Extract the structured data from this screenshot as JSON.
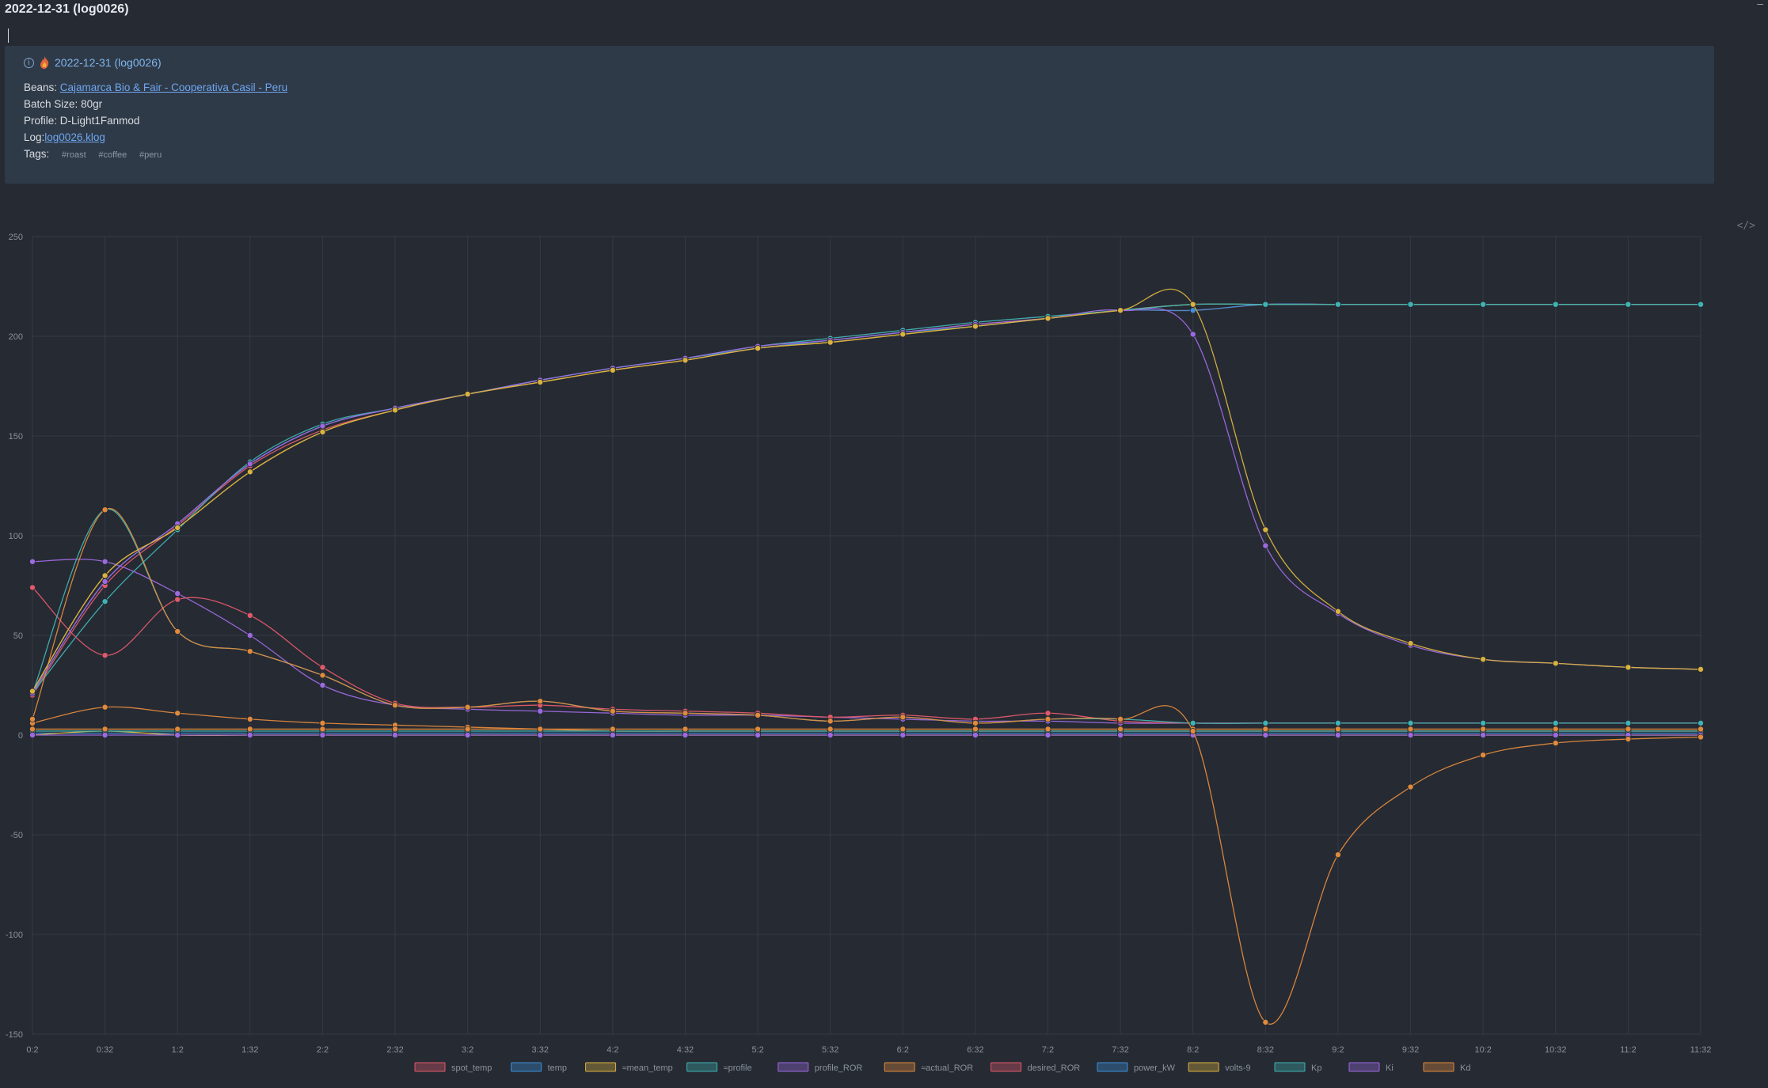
{
  "page": {
    "title": "2022-12-31 (log0026)",
    "minimize_glyph": "–"
  },
  "card": {
    "title": "2022-12-31 (log0026)",
    "beans_label": "Beans:",
    "beans_value": "Cajamarca Bio & Fair - Cooperativa Casil - Peru",
    "batch_label": "Batch Size:",
    "batch_value": "80gr",
    "profile_label": "Profile:",
    "profile_value": "D-Light1Fanmod",
    "log_label": "Log:",
    "log_value": "log0026.klog",
    "tags_label": "Tags:",
    "tags": [
      "#roast",
      "#coffee",
      "#peru"
    ]
  },
  "icons": {
    "info": "info-circle-icon",
    "fire": "fire-icon",
    "embed": "code-embed-icon"
  },
  "chart_data": {
    "type": "line",
    "x": [
      "0:2",
      "0:32",
      "1:2",
      "1:32",
      "2:2",
      "2:32",
      "3:2",
      "3:32",
      "4:2",
      "4:32",
      "5:2",
      "5:32",
      "6:2",
      "6:32",
      "7:2",
      "7:32",
      "8:2",
      "8:32",
      "9:2",
      "9:32",
      "10:2",
      "10:32",
      "11:2",
      "11:32"
    ],
    "ylim": [
      -150,
      250
    ],
    "yticks": [
      250,
      200,
      150,
      100,
      50,
      0,
      -50,
      -100,
      -150
    ],
    "grid": true,
    "legend_position": "bottom",
    "series": [
      {
        "name": "spot_temp",
        "color": "#e05a6b",
        "values": [
          20,
          75,
          105,
          135,
          153,
          163,
          171,
          177,
          183,
          188,
          194,
          198,
          202,
          206,
          209,
          213,
          213,
          216,
          216,
          216,
          216,
          216,
          216,
          216
        ]
      },
      {
        "name": "temp",
        "color": "#3d8fd6",
        "values": [
          21,
          77,
          106,
          136,
          155,
          164,
          171,
          178,
          184,
          189,
          194,
          198,
          202,
          205,
          209,
          213,
          213,
          216,
          216,
          216,
          216,
          216,
          216,
          216
        ]
      },
      {
        "name": "≈mean_temp",
        "color": "#d9b23f",
        "values": [
          22,
          80,
          104,
          132,
          152,
          163,
          171,
          177,
          183,
          188,
          194,
          197,
          201,
          205,
          209,
          213,
          216,
          216,
          216,
          216,
          216,
          216,
          216,
          216
        ]
      },
      {
        "name": "≈profile",
        "color": "#3fb3b3",
        "values": [
          21,
          67,
          103,
          137,
          156,
          164,
          171,
          178,
          184,
          189,
          195,
          199,
          203,
          207,
          210,
          213,
          216,
          216,
          216,
          216,
          216,
          216,
          216,
          216
        ]
      },
      {
        "name": "profile_ROR",
        "color": "#9c6ae0",
        "values": [
          87,
          87,
          71,
          50,
          25,
          15,
          13,
          12,
          11,
          10,
          10,
          9,
          8,
          7,
          7,
          6,
          6,
          6,
          6,
          6,
          6,
          6,
          6,
          6
        ]
      },
      {
        "name": "≈actual_ROR",
        "color": "#e08a3d",
        "values": [
          6,
          14,
          11,
          8,
          6,
          5,
          4,
          3,
          2,
          2,
          2,
          2,
          2,
          2,
          2,
          2,
          2,
          2,
          2,
          2,
          2,
          2,
          2,
          2
        ]
      },
      {
        "name": "desired_ROR",
        "color": "#e05a6b",
        "values": [
          74,
          40,
          68,
          60,
          34,
          16,
          14,
          15,
          13,
          12,
          11,
          9,
          10,
          8,
          11,
          7,
          6,
          6,
          6,
          6,
          6,
          6,
          6,
          6
        ]
      },
      {
        "name": "power_kW",
        "color": "#3d8fd6",
        "values": [
          1,
          1,
          1,
          1,
          1,
          1,
          1,
          1,
          1,
          1,
          1,
          1,
          1,
          1,
          1,
          1,
          1,
          1,
          1,
          1,
          1,
          1,
          1,
          1
        ]
      },
      {
        "name": "volts-9",
        "color": "#d9b23f",
        "values": [
          0,
          2,
          0,
          0,
          0,
          0,
          0,
          0,
          0,
          0,
          0,
          0,
          0,
          0,
          0,
          0,
          0,
          0,
          0,
          0,
          0,
          0,
          0,
          0
        ]
      },
      {
        "name": "Kp",
        "color": "#3fb3b3",
        "values": [
          2,
          2,
          2,
          2,
          2,
          2,
          2,
          2,
          2,
          2,
          2,
          2,
          2,
          2,
          2,
          2,
          2,
          2,
          2,
          2,
          2,
          2,
          2,
          2
        ]
      },
      {
        "name": "Ki",
        "color": "#9c6ae0",
        "values": [
          0,
          0,
          0,
          0,
          0,
          0,
          0,
          0,
          0,
          0,
          0,
          0,
          0,
          0,
          0,
          0,
          0,
          0,
          0,
          0,
          0,
          0,
          0,
          0
        ]
      },
      {
        "name": "Kd",
        "color": "#e08a3d",
        "values": [
          3,
          3,
          3,
          3,
          3,
          3,
          3,
          3,
          3,
          3,
          3,
          3,
          3,
          3,
          3,
          3,
          3,
          3,
          3,
          3,
          3,
          3,
          3,
          3
        ]
      }
    ],
    "extra_curves": [
      {
        "color": "#3fb3b3",
        "values": [
          21,
          113,
          52,
          42,
          30,
          15,
          14,
          17,
          12,
          11,
          10,
          7,
          9,
          6,
          8,
          8,
          6,
          6,
          6,
          6,
          6,
          6,
          6,
          6
        ]
      },
      {
        "color": "#e08a3d",
        "values": [
          8,
          113,
          52,
          42,
          30,
          15,
          14,
          17,
          12,
          11,
          10,
          7,
          9,
          6,
          8,
          8,
          2,
          -144,
          -60,
          -26,
          -10,
          -4,
          -2,
          -1
        ]
      },
      {
        "color": "#9c6ae0",
        "values": [
          21,
          77,
          106,
          136,
          155,
          164,
          171,
          178,
          184,
          189,
          195,
          198,
          202,
          206,
          209,
          213,
          201,
          95,
          61,
          45,
          38,
          36,
          34,
          33
        ]
      },
      {
        "color": "#d9b23f",
        "values": [
          22,
          80,
          104,
          132,
          152,
          163,
          171,
          177,
          183,
          188,
          194,
          197,
          201,
          205,
          209,
          213,
          216,
          103,
          62,
          46,
          38,
          36,
          34,
          33
        ]
      }
    ]
  }
}
